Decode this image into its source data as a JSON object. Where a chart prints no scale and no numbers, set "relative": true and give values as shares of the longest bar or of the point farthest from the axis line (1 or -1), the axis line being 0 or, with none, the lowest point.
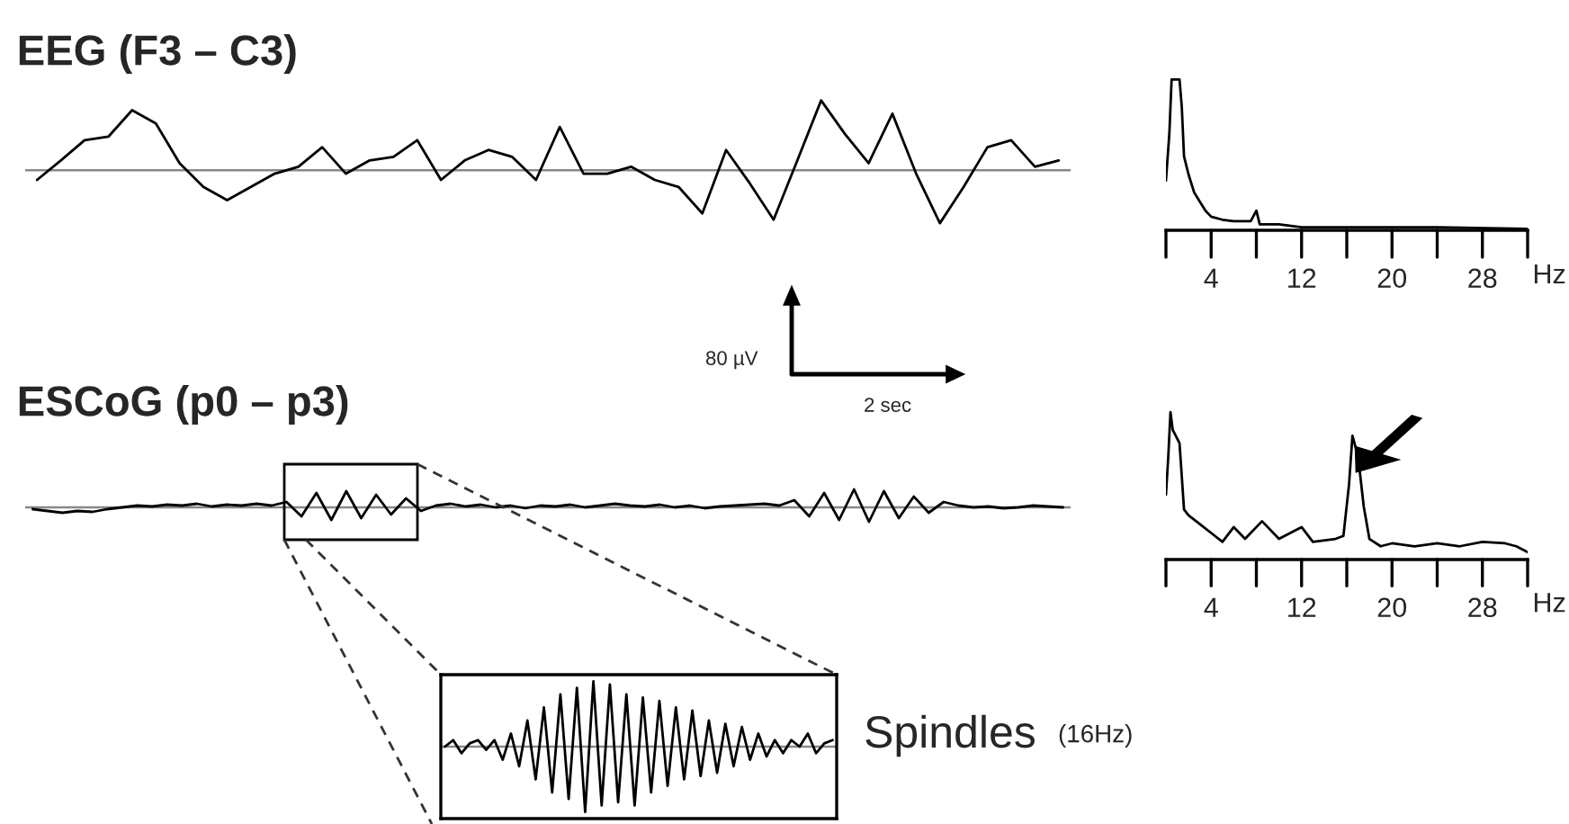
{
  "chart_data": [
    {
      "type": "line",
      "title": "EEG (F3 – C3)",
      "relative": true,
      "tick_labels": false,
      "categories": [
        null,
        null,
        null,
        null,
        null,
        null,
        null,
        null,
        null,
        null,
        null,
        null,
        null,
        null,
        null,
        null,
        null,
        null,
        null,
        null,
        null,
        null,
        null,
        null,
        null,
        null,
        null,
        null,
        null,
        null,
        null,
        null,
        null,
        null,
        null,
        null,
        null,
        null,
        null,
        null,
        null,
        null,
        null,
        null
      ],
      "series": [
        {
          "color": "#000000",
          "values": [
            -0.14,
            0.14,
            0.43,
            0.48,
            0.86,
            0.67,
            0.1,
            -0.24,
            -0.43,
            -0.24,
            -0.05,
            0.05,
            0.33,
            -0.05,
            0.14,
            0.19,
            0.43,
            -0.14,
            0.14,
            0.29,
            0.19,
            -0.14,
            0.62,
            -0.05,
            -0.05,
            0.05,
            -0.14,
            -0.24,
            -0.62,
            0.29,
            -0.19,
            -0.71,
            0.14,
            1,
            0.52,
            0.1,
            0.81,
            -0.05,
            -0.76,
            -0.24,
            0.33,
            0.43,
            0.05,
            0.14
          ]
        }
      ],
      "ref_lines": [
        {
          "axis": "y",
          "value": 0,
          "color": "#888888"
        }
      ]
    },
    {
      "type": "line",
      "relative": true,
      "tick_labels": "x",
      "xlabel": "Hz",
      "xlim": [
        0,
        32
      ],
      "xticks": [
        {
          "value": 0,
          "label": null
        },
        4,
        {
          "value": 8,
          "label": null
        },
        12,
        {
          "value": 16,
          "label": null
        },
        20,
        {
          "value": 24,
          "label": null
        },
        28,
        {
          "value": 32,
          "label": null
        }
      ],
      "series": [
        {
          "color": "#000000",
          "x": [
            0,
            0.3,
            0.5,
            1.2,
            1.4,
            1.6,
            2,
            2.5,
            3,
            3.5,
            4,
            5,
            6,
            7.5,
            8,
            8.3,
            10,
            12,
            16,
            20,
            24,
            32
          ],
          "values": [
            0.33,
            0.64,
            1,
            1,
            0.82,
            0.49,
            0.37,
            0.25,
            0.19,
            0.13,
            0.09,
            0.07,
            0.06,
            0.06,
            0.13,
            0.04,
            0.04,
            0.02,
            0.02,
            0.02,
            0.02,
            0.01
          ]
        }
      ]
    },
    {
      "type": "line",
      "title": "ESCoG (p0 – p3)",
      "relative": true,
      "tick_labels": false,
      "annotations": [
        "80 µV",
        "2 sec"
      ],
      "categories": [
        null,
        null,
        null,
        null,
        null,
        null,
        null,
        null,
        null,
        null,
        null,
        null,
        null,
        null,
        null,
        null,
        null,
        null,
        null,
        null,
        null,
        null,
        null,
        null,
        null,
        null,
        null,
        null,
        null,
        null,
        null,
        null,
        null,
        null,
        null,
        null,
        null,
        null,
        null,
        null,
        null,
        null,
        null,
        null,
        null,
        null,
        null,
        null,
        null,
        null,
        null,
        null,
        null,
        null,
        null,
        null,
        null,
        null,
        null,
        null,
        null,
        null,
        null,
        null,
        null,
        null,
        null,
        null,
        null,
        null
      ],
      "series": [
        {
          "color": "#000000",
          "values": [
            -0.1,
            -0.2,
            -0.3,
            -0.2,
            -0.25,
            -0.1,
            0,
            0.1,
            0.05,
            0.15,
            0.1,
            0.2,
            0.05,
            0.15,
            0.1,
            0.2,
            0.1,
            0.3,
            -0.5,
            0.8,
            -0.7,
            0.9,
            -0.6,
            0.7,
            -0.4,
            0.5,
            -0.2,
            0.1,
            0.2,
            0.05,
            0.15,
            0,
            0.1,
            -0.05,
            0.1,
            0.05,
            0.15,
            0,
            0.1,
            0.2,
            0.1,
            0.05,
            0.15,
            0,
            0.1,
            -0.05,
            0.05,
            0.1,
            0.15,
            0.2,
            0.1,
            0.4,
            -0.5,
            0.8,
            -0.7,
            1,
            -0.8,
            0.9,
            -0.6,
            0.6,
            -0.3,
            0.3,
            0.1,
            0,
            0.05,
            -0.05,
            0,
            0.1,
            0.05,
            0
          ]
        }
      ],
      "ref_lines": [
        {
          "axis": "y",
          "value": 0,
          "color": "#888888"
        }
      ]
    },
    {
      "type": "line",
      "relative": true,
      "tick_labels": "x",
      "xlabel": "Hz",
      "xlim": [
        0,
        32
      ],
      "xticks": [
        {
          "value": 0,
          "label": null
        },
        4,
        {
          "value": 8,
          "label": null
        },
        12,
        {
          "value": 16,
          "label": null
        },
        20,
        {
          "value": 24,
          "label": null
        },
        28,
        {
          "value": 32,
          "label": null
        }
      ],
      "series": [
        {
          "color": "#000000",
          "x": [
            0,
            0.2,
            0.4,
            0.6,
            1.2,
            1.6,
            2,
            3,
            4,
            5,
            6,
            7,
            8.5,
            10,
            12,
            13,
            15,
            15.7,
            16.2,
            16.5,
            17,
            17.5,
            18,
            19,
            20,
            22,
            24,
            26,
            28,
            30,
            31,
            32
          ],
          "values": [
            0.44,
            0.69,
            1,
            0.88,
            0.79,
            0.34,
            0.3,
            0.24,
            0.18,
            0.12,
            0.22,
            0.14,
            0.26,
            0.14,
            0.22,
            0.12,
            0.14,
            0.16,
            0.51,
            0.84,
            0.7,
            0.36,
            0.14,
            0.09,
            0.11,
            0.09,
            0.11,
            0.09,
            0.12,
            0.11,
            0.09,
            0.05
          ]
        }
      ]
    },
    {
      "type": "line",
      "relative": true,
      "tick_labels": false,
      "annotations": [
        "Spindles",
        "(16Hz)"
      ],
      "categories": [
        null,
        null,
        null,
        null,
        null,
        null,
        null,
        null,
        null,
        null,
        null,
        null,
        null,
        null,
        null,
        null,
        null,
        null,
        null,
        null,
        null,
        null,
        null,
        null,
        null,
        null,
        null,
        null,
        null,
        null,
        null,
        null,
        null,
        null,
        null,
        null,
        null,
        null,
        null,
        null,
        null,
        null,
        null,
        null,
        null,
        null,
        null,
        null
      ],
      "series": [
        {
          "color": "#000000",
          "values": [
            0,
            0.1,
            -0.1,
            0.05,
            0.1,
            -0.05,
            0.1,
            -0.2,
            0.2,
            -0.3,
            0.4,
            -0.5,
            0.6,
            -0.7,
            0.8,
            -0.8,
            0.9,
            -1,
            1,
            -0.9,
            0.95,
            -0.85,
            0.8,
            -0.9,
            0.75,
            -0.7,
            0.7,
            -0.6,
            0.6,
            -0.5,
            0.55,
            -0.45,
            0.4,
            -0.4,
            0.35,
            -0.3,
            0.3,
            -0.2,
            0.2,
            -0.15,
            0.1,
            -0.1,
            0.1,
            0,
            0.2,
            -0.1,
            0.05,
            0.1
          ]
        }
      ],
      "ref_lines": [
        {
          "axis": "y",
          "value": 0,
          "color": "#888888"
        }
      ]
    }
  ]
}
